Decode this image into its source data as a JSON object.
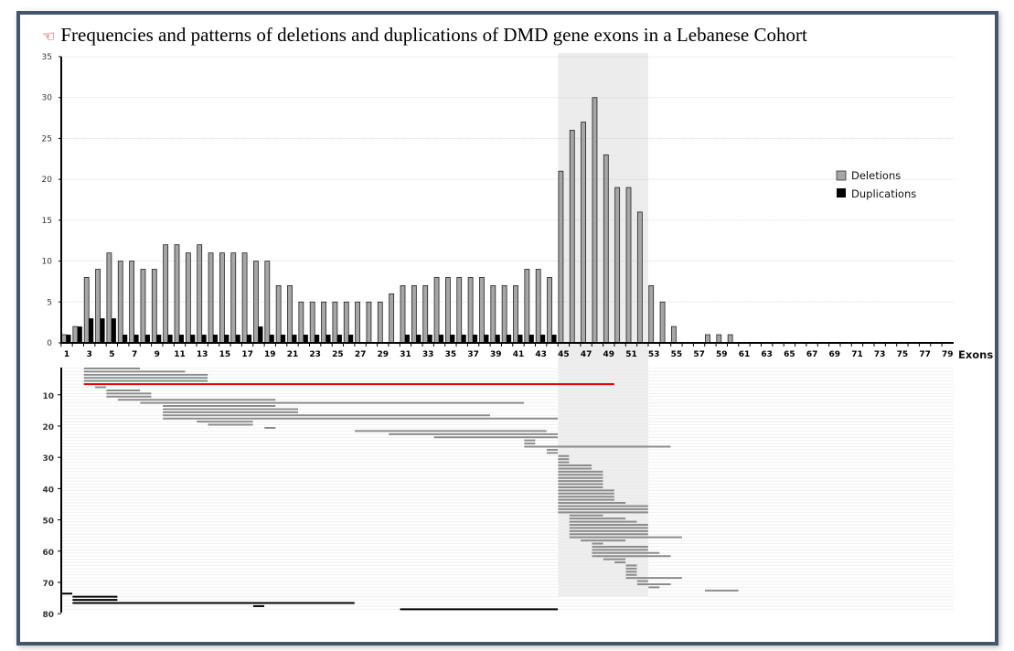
{
  "title": "Frequencies and patterns of deletions and duplications of DMD gene exons in a Lebanese Cohort",
  "title_icon": "pointing-hand-icon",
  "colors": {
    "frame": "#44546a",
    "deletion": "#a6a6a6",
    "duplication": "#000000",
    "highlight": "#ececec",
    "red_line": "#e00000",
    "segment": "#8c8c8c"
  },
  "chart_data": [
    {
      "type": "bar",
      "title": "",
      "xlabel": "Exons",
      "ylabel": "",
      "ylim": [
        0,
        35
      ],
      "yticks": [
        "0",
        "5",
        "10",
        "15",
        "20",
        "25",
        "30",
        "35"
      ],
      "xticks": [
        "1",
        "3",
        "5",
        "7",
        "9",
        "11",
        "13",
        "15",
        "17",
        "19",
        "21",
        "23",
        "25",
        "27",
        "29",
        "31",
        "33",
        "35",
        "37",
        "39",
        "41",
        "43",
        "45",
        "47",
        "49",
        "51",
        "53",
        "55",
        "57",
        "59",
        "61",
        "63",
        "65",
        "67",
        "69",
        "71",
        "73",
        "75",
        "77",
        "79"
      ],
      "grid": true,
      "legend_position": "right",
      "highlight_exons": [
        45,
        52
      ],
      "categories_range": [
        1,
        79
      ],
      "series": [
        {
          "name": "Deletions",
          "values": [
            1,
            2,
            8,
            9,
            11,
            10,
            10,
            9,
            9,
            12,
            12,
            11,
            12,
            11,
            11,
            11,
            11,
            10,
            10,
            7,
            7,
            5,
            5,
            5,
            5,
            5,
            5,
            5,
            5,
            6,
            7,
            7,
            7,
            8,
            8,
            8,
            8,
            8,
            7,
            7,
            7,
            9,
            9,
            8,
            21,
            26,
            27,
            30,
            23,
            19,
            19,
            16,
            7,
            5,
            2,
            0,
            0,
            1,
            1,
            1,
            0,
            0,
            0,
            0,
            0,
            0,
            0,
            0,
            0,
            0,
            0,
            0,
            0,
            0,
            0,
            0,
            0,
            0,
            0
          ]
        },
        {
          "name": "Duplications",
          "values": [
            1,
            2,
            3,
            3,
            3,
            1,
            1,
            1,
            1,
            1,
            1,
            1,
            1,
            1,
            1,
            1,
            1,
            2,
            1,
            1,
            1,
            1,
            1,
            1,
            1,
            1,
            0,
            0,
            0,
            0,
            1,
            1,
            1,
            1,
            1,
            1,
            1,
            1,
            1,
            1,
            1,
            1,
            1,
            1,
            0,
            0,
            0,
            0,
            0,
            0,
            0,
            0,
            0,
            0,
            0,
            0,
            0,
            0,
            0,
            0,
            0,
            0,
            0,
            0,
            0,
            0,
            0,
            0,
            0,
            0,
            0,
            0,
            0,
            0,
            0,
            0,
            0,
            0,
            0
          ]
        }
      ]
    },
    {
      "type": "range",
      "ylabel": "",
      "yticks": [
        "10",
        "20",
        "30",
        "40",
        "50",
        "60",
        "70",
        "80"
      ],
      "segments": [
        {
          "start": 3,
          "end": 7,
          "kind": "deletion"
        },
        {
          "start": 3,
          "end": 11,
          "kind": "deletion"
        },
        {
          "start": 3,
          "end": 13,
          "kind": "deletion"
        },
        {
          "start": 3,
          "end": 13,
          "kind": "deletion"
        },
        {
          "start": 3,
          "end": 13,
          "kind": "deletion"
        },
        {
          "start": 3,
          "end": 49,
          "kind": "highlight"
        },
        {
          "start": 4,
          "end": 4,
          "kind": "deletion"
        },
        {
          "start": 5,
          "end": 7,
          "kind": "deletion"
        },
        {
          "start": 5,
          "end": 8,
          "kind": "deletion"
        },
        {
          "start": 5,
          "end": 8,
          "kind": "deletion"
        },
        {
          "start": 6,
          "end": 19,
          "kind": "deletion"
        },
        {
          "start": 8,
          "end": 41,
          "kind": "deletion"
        },
        {
          "start": 10,
          "end": 19,
          "kind": "deletion"
        },
        {
          "start": 10,
          "end": 21,
          "kind": "deletion"
        },
        {
          "start": 10,
          "end": 21,
          "kind": "deletion"
        },
        {
          "start": 10,
          "end": 38,
          "kind": "deletion"
        },
        {
          "start": 10,
          "end": 44,
          "kind": "deletion"
        },
        {
          "start": 13,
          "end": 17,
          "kind": "deletion"
        },
        {
          "start": 14,
          "end": 17,
          "kind": "deletion"
        },
        {
          "start": 19,
          "end": 19,
          "kind": "deletion"
        },
        {
          "start": 27,
          "end": 43,
          "kind": "deletion"
        },
        {
          "start": 30,
          "end": 44,
          "kind": "deletion"
        },
        {
          "start": 34,
          "end": 44,
          "kind": "deletion"
        },
        {
          "start": 42,
          "end": 42,
          "kind": "deletion"
        },
        {
          "start": 42,
          "end": 42,
          "kind": "deletion"
        },
        {
          "start": 42,
          "end": 54,
          "kind": "deletion"
        },
        {
          "start": 44,
          "end": 44,
          "kind": "deletion"
        },
        {
          "start": 44,
          "end": 44,
          "kind": "deletion"
        },
        {
          "start": 45,
          "end": 45,
          "kind": "deletion"
        },
        {
          "start": 45,
          "end": 45,
          "kind": "deletion"
        },
        {
          "start": 45,
          "end": 45,
          "kind": "deletion"
        },
        {
          "start": 45,
          "end": 47,
          "kind": "deletion"
        },
        {
          "start": 45,
          "end": 47,
          "kind": "deletion"
        },
        {
          "start": 45,
          "end": 48,
          "kind": "deletion"
        },
        {
          "start": 45,
          "end": 48,
          "kind": "deletion"
        },
        {
          "start": 45,
          "end": 48,
          "kind": "deletion"
        },
        {
          "start": 45,
          "end": 48,
          "kind": "deletion"
        },
        {
          "start": 45,
          "end": 48,
          "kind": "deletion"
        },
        {
          "start": 45,
          "end": 48,
          "kind": "deletion"
        },
        {
          "start": 45,
          "end": 49,
          "kind": "deletion"
        },
        {
          "start": 45,
          "end": 49,
          "kind": "deletion"
        },
        {
          "start": 45,
          "end": 49,
          "kind": "deletion"
        },
        {
          "start": 45,
          "end": 49,
          "kind": "deletion"
        },
        {
          "start": 45,
          "end": 50,
          "kind": "deletion"
        },
        {
          "start": 45,
          "end": 52,
          "kind": "deletion"
        },
        {
          "start": 45,
          "end": 52,
          "kind": "deletion"
        },
        {
          "start": 45,
          "end": 52,
          "kind": "deletion"
        },
        {
          "start": 46,
          "end": 48,
          "kind": "deletion"
        },
        {
          "start": 46,
          "end": 50,
          "kind": "deletion"
        },
        {
          "start": 46,
          "end": 51,
          "kind": "deletion"
        },
        {
          "start": 46,
          "end": 52,
          "kind": "deletion"
        },
        {
          "start": 46,
          "end": 52,
          "kind": "deletion"
        },
        {
          "start": 46,
          "end": 52,
          "kind": "deletion"
        },
        {
          "start": 46,
          "end": 52,
          "kind": "deletion"
        },
        {
          "start": 46,
          "end": 55,
          "kind": "deletion"
        },
        {
          "start": 47,
          "end": 50,
          "kind": "deletion"
        },
        {
          "start": 48,
          "end": 48,
          "kind": "deletion"
        },
        {
          "start": 48,
          "end": 52,
          "kind": "deletion"
        },
        {
          "start": 48,
          "end": 52,
          "kind": "deletion"
        },
        {
          "start": 48,
          "end": 53,
          "kind": "deletion"
        },
        {
          "start": 48,
          "end": 54,
          "kind": "deletion"
        },
        {
          "start": 49,
          "end": 50,
          "kind": "deletion"
        },
        {
          "start": 50,
          "end": 50,
          "kind": "deletion"
        },
        {
          "start": 51,
          "end": 51,
          "kind": "deletion"
        },
        {
          "start": 51,
          "end": 51,
          "kind": "deletion"
        },
        {
          "start": 51,
          "end": 51,
          "kind": "deletion"
        },
        {
          "start": 51,
          "end": 51,
          "kind": "deletion"
        },
        {
          "start": 51,
          "end": 55,
          "kind": "deletion"
        },
        {
          "start": 52,
          "end": 52,
          "kind": "deletion"
        },
        {
          "start": 52,
          "end": 54,
          "kind": "deletion"
        },
        {
          "start": 53,
          "end": 53,
          "kind": "deletion"
        },
        {
          "start": 58,
          "end": 60,
          "kind": "deletion"
        },
        {
          "start": 1,
          "end": 1,
          "kind": "duplication"
        },
        {
          "start": 2,
          "end": 5,
          "kind": "duplication"
        },
        {
          "start": 2,
          "end": 5,
          "kind": "duplication"
        },
        {
          "start": 2,
          "end": 26,
          "kind": "duplication"
        },
        {
          "start": 18,
          "end": 18,
          "kind": "duplication"
        },
        {
          "start": 31,
          "end": 44,
          "kind": "duplication"
        }
      ]
    }
  ]
}
